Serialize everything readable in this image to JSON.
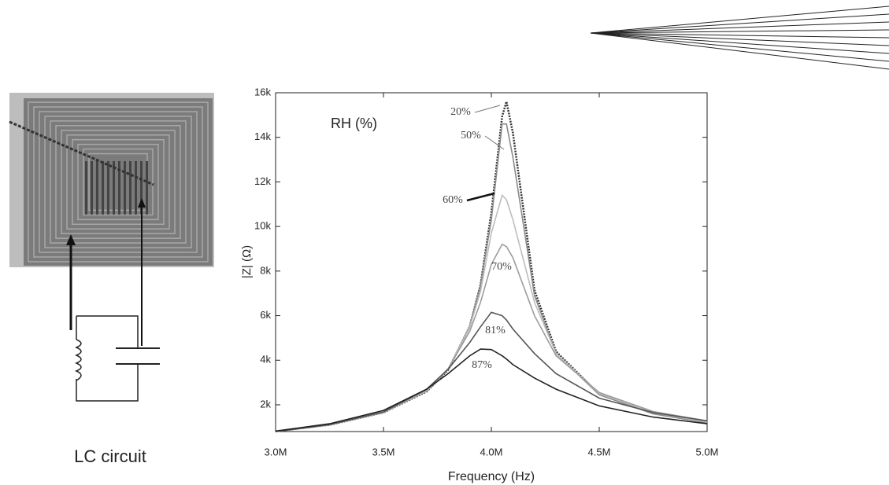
{
  "figure_label": "LC circuit",
  "chart_data": {
    "type": "line",
    "legend_title": "RH (%)",
    "x_label": "Frequency (Hz)",
    "y_label": "|Z| (Ω)",
    "x": [
      3000000,
      3250000,
      3500000,
      3700000,
      3800000,
      3900000,
      3950000,
      4000000,
      4050000,
      4070000,
      4100000,
      4200000,
      4300000,
      4500000,
      4750000,
      5000000
    ],
    "series": [
      {
        "name": "20%",
        "color": "#333333",
        "values": [
          812,
          1105,
          1653,
          2596,
          3570,
          5510,
          7400,
          10620,
          14940,
          15600,
          14190,
          7140,
          4390,
          2470,
          1610,
          1210
        ]
      },
      {
        "name": "50%",
        "color": "#8a8a8a",
        "values": [
          810,
          1110,
          1660,
          2610,
          3590,
          5530,
          7380,
          10300,
          14600,
          14600,
          13100,
          6900,
          4300,
          2450,
          1600,
          1200
        ]
      },
      {
        "name": "60%",
        "color": "#bdbdbd",
        "values": [
          800,
          1100,
          1650,
          2620,
          3600,
          5480,
          7100,
          9700,
          11400,
          11200,
          10300,
          6600,
          4300,
          2500,
          1650,
          1230
        ]
      },
      {
        "name": "70%",
        "color": "#9c9c9c",
        "values": [
          800,
          1100,
          1660,
          2650,
          3620,
          5300,
          6600,
          8300,
          9200,
          9100,
          8600,
          6000,
          4200,
          2550,
          1700,
          1280
        ]
      },
      {
        "name": "81%",
        "color": "#555555",
        "values": [
          800,
          1110,
          1680,
          2700,
          3600,
          4800,
          5500,
          6150,
          6000,
          5800,
          5400,
          4300,
          3400,
          2300,
          1650,
          1280
        ]
      },
      {
        "name": "87%",
        "color": "#222222",
        "values": [
          820,
          1150,
          1750,
          2700,
          3400,
          4200,
          4500,
          4480,
          4200,
          4050,
          3800,
          3200,
          2700,
          1950,
          1450,
          1150
        ]
      }
    ],
    "xlim": [
      3000000,
      5000000
    ],
    "xticks": [
      {
        "value": 3000000,
        "label": "3.0M"
      },
      {
        "value": 3500000,
        "label": "3.5M"
      },
      {
        "value": 4000000,
        "label": "4.0M"
      },
      {
        "value": 4500000,
        "label": "4.5M"
      },
      {
        "value": 5000000,
        "label": "5.0M"
      }
    ],
    "ylim": [
      800,
      16000
    ],
    "yticks": [
      {
        "value": 2000,
        "label": "2k"
      },
      {
        "value": 4000,
        "label": "4k"
      },
      {
        "value": 6000,
        "label": "6k"
      },
      {
        "value": 8000,
        "label": "8k"
      },
      {
        "value": 10000,
        "label": "10k"
      },
      {
        "value": 12000,
        "label": "12k"
      },
      {
        "value": 14000,
        "label": "14k"
      },
      {
        "value": 16000,
        "label": "16k"
      }
    ]
  }
}
